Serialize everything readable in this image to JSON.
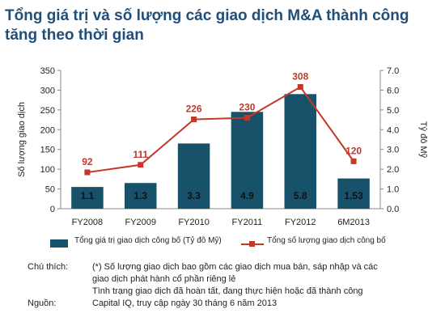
{
  "title": {
    "line1": "Tổng giá trị và số lượng các giao dịch M&A thành công",
    "line2": "tăng theo thời gian"
  },
  "chart_data": {
    "type": "bar",
    "categories": [
      "FY2008",
      "FY2009",
      "FY2010",
      "FY2011",
      "FY2012",
      "6M2013"
    ],
    "series": [
      {
        "name": "Tổng giá trị giao dịch công bố (Tỷ đô Mỹ)",
        "type": "bar",
        "axis": "right",
        "values": [
          1.1,
          1.3,
          3.3,
          4.9,
          5.8,
          1.53
        ],
        "labels": [
          "1.1",
          "1.3",
          "3.3",
          "4.9",
          "5.8",
          "1.53"
        ],
        "color": "#17526a"
      },
      {
        "name": "Tổng số lượng giao dịch công bố",
        "type": "line",
        "axis": "left",
        "values": [
          92,
          111,
          226,
          230,
          308,
          120
        ],
        "labels": [
          "92",
          "111",
          "226",
          "230",
          "308",
          "120"
        ],
        "color": "#c0392b"
      }
    ],
    "ylabel": "Số lượng giao dịch",
    "ylabel_right": "Tỷ đô Mỹ",
    "ylim": [
      0,
      350
    ],
    "ylim_right": [
      0,
      7.0
    ],
    "yticks": [
      "0",
      "50",
      "100",
      "150",
      "200",
      "250",
      "300",
      "350"
    ],
    "yticks_right": [
      "0.0",
      "1.0",
      "2.0",
      "3.0",
      "4.0",
      "5.0",
      "6.0",
      "7.0"
    ],
    "grid": false,
    "legend_position": "bottom"
  },
  "notes": {
    "note_label": "Chú thích:",
    "note_line1": "(*) Số lượng giao dịch bao gồm các giao dịch mua bán, sáp nhập và các",
    "note_line2": "giao dịch phát hành cổ phần riêng lẻ",
    "note_line3": "Tình trạng giao dịch đã hoàn tất, đang thực hiện hoặc đã thành công",
    "source_label": "Nguồn:",
    "source_text": "Capital IQ, truy cập ngày 30 tháng 6 năm 2013"
  }
}
